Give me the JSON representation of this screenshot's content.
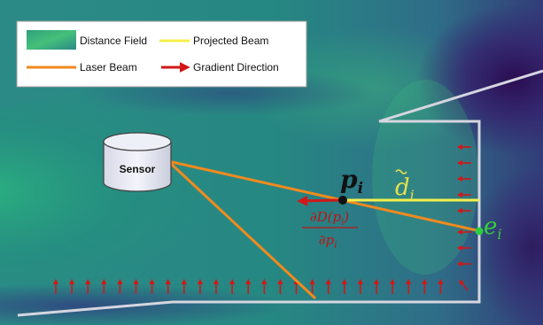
{
  "legend": {
    "distance_field": "Distance Field",
    "projected_beam": "Projected Beam",
    "laser_beam": "Laser Beam",
    "gradient_direction": "Gradient Direction"
  },
  "sensor": {
    "label": "Sensor"
  },
  "annotations": {
    "point_p": "p",
    "point_p_sub": "i",
    "distance_d": "d",
    "distance_d_sub": "i",
    "endpoint_e": "e",
    "endpoint_e_sub": "i",
    "grad_num": "∂D(p",
    "grad_num_sub": "i",
    "grad_num_close": ")",
    "grad_den": "∂p",
    "grad_den_sub": "i"
  },
  "colors": {
    "laser": "#f08a1e",
    "projected": "#f3f04a",
    "gradient_arrow": "#d01818",
    "wall": "#d6d6e0",
    "endpoint": "#2ecc40",
    "point": "#111111",
    "distance_label": "#e8e04a",
    "endpoint_label": "#35d038",
    "grad_label": "#c01414"
  }
}
